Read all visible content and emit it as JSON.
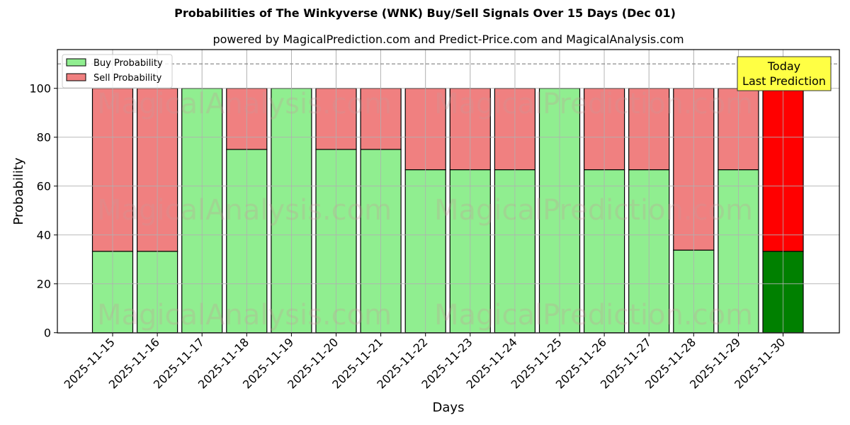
{
  "chart_data": {
    "type": "bar",
    "stacked": true,
    "title": "Probabilities of The Winkyverse (WNK) Buy/Sell Signals Over 15 Days (Dec 01)",
    "subtitle": "powered by MagicalPrediction.com and Predict-Price.com and MagicalAnalysis.com",
    "xlabel": "Days",
    "ylabel": "Probability",
    "ylim": [
      0,
      115.9
    ],
    "yticks": [
      0,
      20,
      40,
      60,
      80,
      100
    ],
    "grid": true,
    "legend_position": "upper left",
    "reference_line": {
      "y": 110,
      "style": "dashed",
      "color": "#808080"
    },
    "categories": [
      "2025-11-15",
      "2025-11-16",
      "2025-11-17",
      "2025-11-18",
      "2025-11-19",
      "2025-11-20",
      "2025-11-21",
      "2025-11-22",
      "2025-11-23",
      "2025-11-24",
      "2025-11-25",
      "2025-11-26",
      "2025-11-27",
      "2025-11-28",
      "2025-11-29",
      "2025-11-30"
    ],
    "series": [
      {
        "name": "Buy Probability",
        "color": "#90ee90",
        "values": [
          33.3,
          33.3,
          100,
          75,
          100,
          75,
          75,
          66.7,
          66.7,
          66.7,
          100,
          66.7,
          66.7,
          33.8,
          66.7,
          33.3
        ]
      },
      {
        "name": "Sell Probability",
        "color": "#f08080",
        "values": [
          66.7,
          66.7,
          0,
          25,
          0,
          25,
          25,
          33.3,
          33.3,
          33.3,
          0,
          33.3,
          33.3,
          66.2,
          33.3,
          66.7
        ]
      }
    ],
    "highlight": {
      "index": 15,
      "buy_color": "#008000",
      "sell_color": "#ff0000"
    },
    "annotation": {
      "lines": [
        "Today",
        "Last Prediction"
      ],
      "background": "#ffff44",
      "target_index": 15
    },
    "watermarks": [
      "MagicalAnalysis.com",
      "MagicalPrediction.com"
    ]
  },
  "header": {
    "title": "Probabilities of The Winkyverse (WNK) Buy/Sell Signals Over 15 Days (Dec 01)",
    "subtitle": "powered by MagicalPrediction.com and Predict-Price.com and MagicalAnalysis.com"
  },
  "legend": {
    "items": [
      {
        "label": "Buy Probability",
        "color": "#90ee90"
      },
      {
        "label": "Sell Probability",
        "color": "#f08080"
      }
    ]
  }
}
